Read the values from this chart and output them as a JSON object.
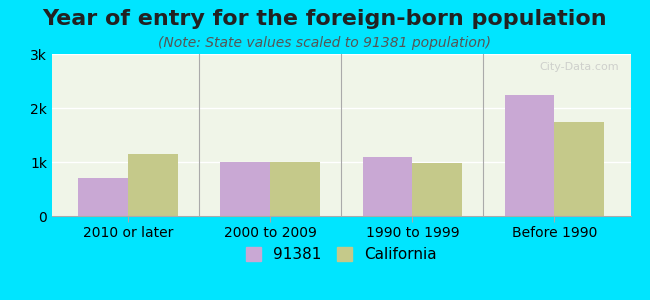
{
  "title": "Year of entry for the foreign-born population",
  "subtitle": "(Note: State values scaled to 91381 population)",
  "categories": [
    "2010 or later",
    "2000 to 2009",
    "1990 to 1999",
    "Before 1990"
  ],
  "values_91381": [
    700,
    1000,
    1100,
    2250
  ],
  "values_california": [
    1150,
    1000,
    980,
    1750
  ],
  "color_91381": "#c9a8d4",
  "color_california": "#c5c98a",
  "ylim": [
    0,
    3000
  ],
  "yticks": [
    0,
    1000,
    2000,
    3000
  ],
  "ytick_labels": [
    "0",
    "1k",
    "2k",
    "3k"
  ],
  "background_outer": "#00e5ff",
  "background_inner": "#f0f5e8",
  "bar_width": 0.35,
  "legend_label_91381": "91381",
  "legend_label_california": "California",
  "title_fontsize": 16,
  "subtitle_fontsize": 10,
  "tick_fontsize": 10,
  "legend_fontsize": 11
}
